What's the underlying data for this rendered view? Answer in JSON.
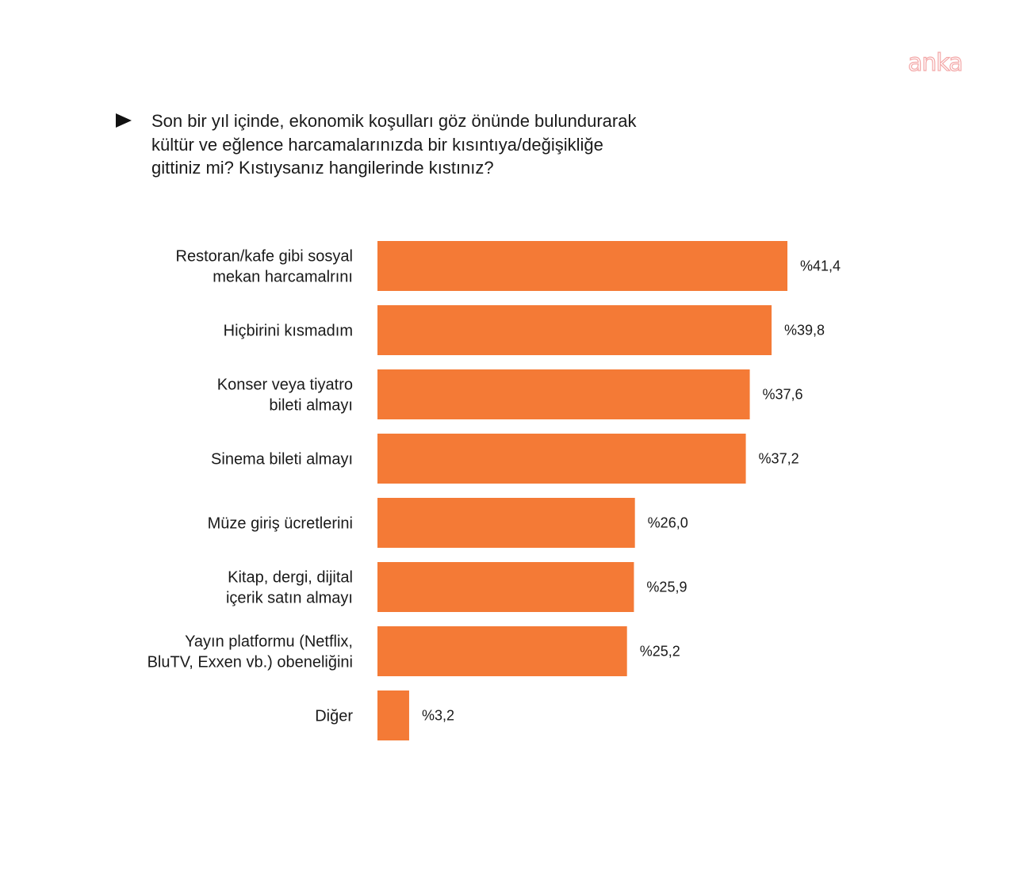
{
  "watermark": "anka",
  "question": [
    "Son bir yıl içinde, ekonomik koşulları göz önünde bulundurarak",
    "kültür ve eğlence harcamalarınızda bir kısıntıya/değişikliğe",
    "gittiniz mi? Kıstıysanız hangilerinde kıstınız?"
  ],
  "chart_data": {
    "type": "bar",
    "orientation": "horizontal",
    "categories": [
      [
        "Restoran/kafe gibi sosyal",
        "mekan harcamalrını"
      ],
      [
        "Hiçbirini kısmadım"
      ],
      [
        "Konser veya tiyatro",
        "bileti almayı"
      ],
      [
        "Sinema bileti almayı"
      ],
      [
        "Müze giriş ücretlerini"
      ],
      [
        "Kitap, dergi, dijital",
        "içerik satın almayı"
      ],
      [
        "Yayın platformu (Netflix,",
        "BluTV, Exxen vb.) obeneliğini"
      ],
      [
        "Diğer"
      ]
    ],
    "values": [
      41.4,
      39.8,
      37.6,
      37.2,
      26.0,
      25.9,
      25.2,
      3.2
    ],
    "value_labels": [
      "%41,4",
      "%39,8",
      "%37,6",
      "%37,2",
      "%26,0",
      "%25,9",
      "%25,2",
      "%3,2"
    ],
    "bar_color": "#f47a36",
    "grid": false,
    "legend": "none"
  }
}
